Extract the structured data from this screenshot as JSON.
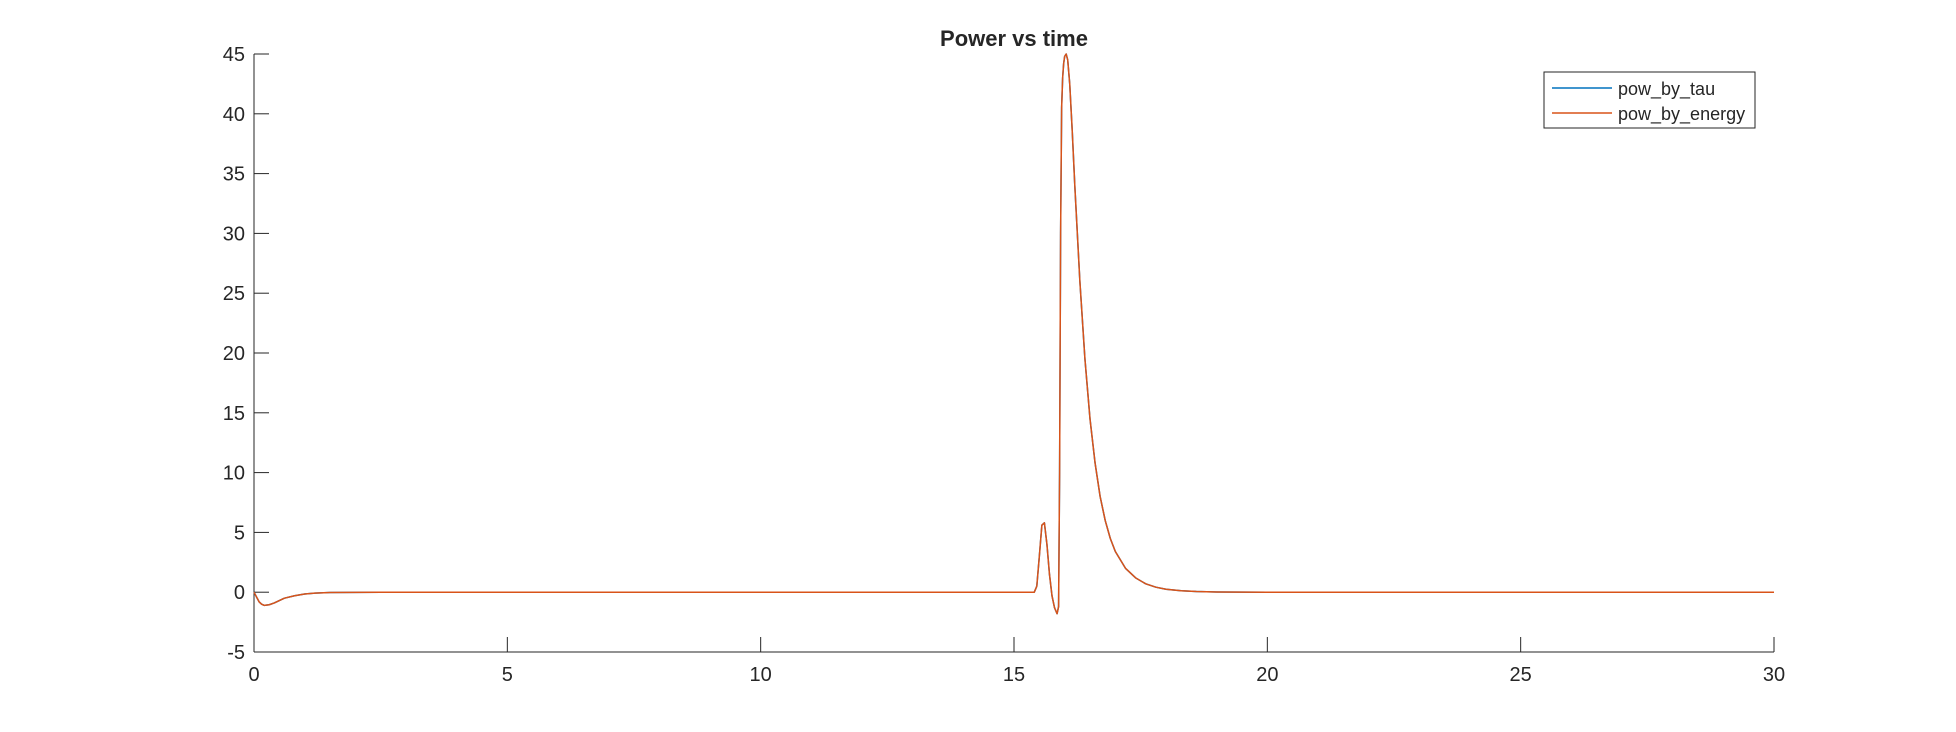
{
  "chart_data": {
    "type": "line",
    "title": "Power vs time",
    "xlabel": "",
    "ylabel": "",
    "xlim": [
      0,
      30
    ],
    "ylim": [
      -5,
      45
    ],
    "xticks": [
      0,
      5,
      10,
      15,
      20,
      25,
      30
    ],
    "xtick_labels": [
      "0",
      "5",
      "10",
      "15",
      "20",
      "25",
      "30"
    ],
    "yticks": [
      -5,
      0,
      5,
      10,
      15,
      20,
      25,
      30,
      35,
      40,
      45
    ],
    "ytick_labels": [
      "-5",
      "0",
      "5",
      "10",
      "15",
      "20",
      "25",
      "30",
      "35",
      "40",
      "45"
    ],
    "grid": false,
    "legend_position": "top-right",
    "series": [
      {
        "name": "pow_by_tau",
        "color": "#0072BD",
        "x": [
          0,
          0.05,
          0.1,
          0.15,
          0.2,
          0.3,
          0.4,
          0.5,
          0.6,
          0.8,
          1.0,
          1.2,
          1.5,
          2.0,
          2.5,
          3.0,
          5.0,
          10.0,
          15.0,
          15.4,
          15.45,
          15.5,
          15.55,
          15.6,
          15.65,
          15.7,
          15.75,
          15.8,
          15.85,
          15.88,
          15.9,
          15.92,
          15.94,
          15.96,
          15.98,
          16.0,
          16.03,
          16.06,
          16.1,
          16.15,
          16.2,
          16.3,
          16.4,
          16.5,
          16.6,
          16.7,
          16.8,
          16.9,
          17.0,
          17.2,
          17.4,
          17.6,
          17.8,
          18.0,
          18.3,
          18.6,
          19.0,
          19.5,
          20.0,
          25.0,
          30.0
        ],
        "y": [
          0,
          -0.4,
          -0.8,
          -1.0,
          -1.1,
          -1.05,
          -0.9,
          -0.7,
          -0.5,
          -0.3,
          -0.15,
          -0.08,
          -0.03,
          -0.01,
          0,
          0,
          0,
          0,
          0,
          0,
          0.5,
          3.0,
          5.6,
          5.8,
          4.0,
          1.5,
          -0.3,
          -1.3,
          -1.8,
          -1.2,
          10.0,
          30.0,
          40.5,
          43.0,
          44.2,
          44.8,
          45.0,
          44.5,
          42.5,
          38.5,
          34.0,
          26.0,
          19.5,
          14.5,
          10.8,
          8.0,
          6.0,
          4.5,
          3.4,
          2.0,
          1.2,
          0.7,
          0.42,
          0.25,
          0.12,
          0.06,
          0.02,
          0.005,
          0,
          0,
          0
        ]
      },
      {
        "name": "pow_by_energy",
        "color": "#D95319",
        "x": [
          0,
          0.05,
          0.1,
          0.15,
          0.2,
          0.3,
          0.4,
          0.5,
          0.6,
          0.8,
          1.0,
          1.2,
          1.5,
          2.0,
          2.5,
          3.0,
          5.0,
          10.0,
          15.0,
          15.4,
          15.45,
          15.5,
          15.55,
          15.6,
          15.65,
          15.7,
          15.75,
          15.8,
          15.85,
          15.88,
          15.9,
          15.92,
          15.94,
          15.96,
          15.98,
          16.0,
          16.03,
          16.06,
          16.1,
          16.15,
          16.2,
          16.3,
          16.4,
          16.5,
          16.6,
          16.7,
          16.8,
          16.9,
          17.0,
          17.2,
          17.4,
          17.6,
          17.8,
          18.0,
          18.3,
          18.6,
          19.0,
          19.5,
          20.0,
          25.0,
          30.0
        ],
        "y": [
          0,
          -0.4,
          -0.8,
          -1.0,
          -1.1,
          -1.05,
          -0.9,
          -0.7,
          -0.5,
          -0.3,
          -0.15,
          -0.08,
          -0.03,
          -0.01,
          0,
          0,
          0,
          0,
          0,
          0,
          0.5,
          3.0,
          5.6,
          5.8,
          4.0,
          1.5,
          -0.3,
          -1.3,
          -1.8,
          -1.2,
          10.0,
          30.0,
          40.5,
          43.0,
          44.2,
          44.8,
          45.0,
          44.5,
          42.5,
          38.5,
          34.0,
          26.0,
          19.5,
          14.5,
          10.8,
          8.0,
          6.0,
          4.5,
          3.4,
          2.0,
          1.2,
          0.7,
          0.42,
          0.25,
          0.12,
          0.06,
          0.02,
          0.005,
          0,
          0,
          0
        ]
      }
    ]
  }
}
